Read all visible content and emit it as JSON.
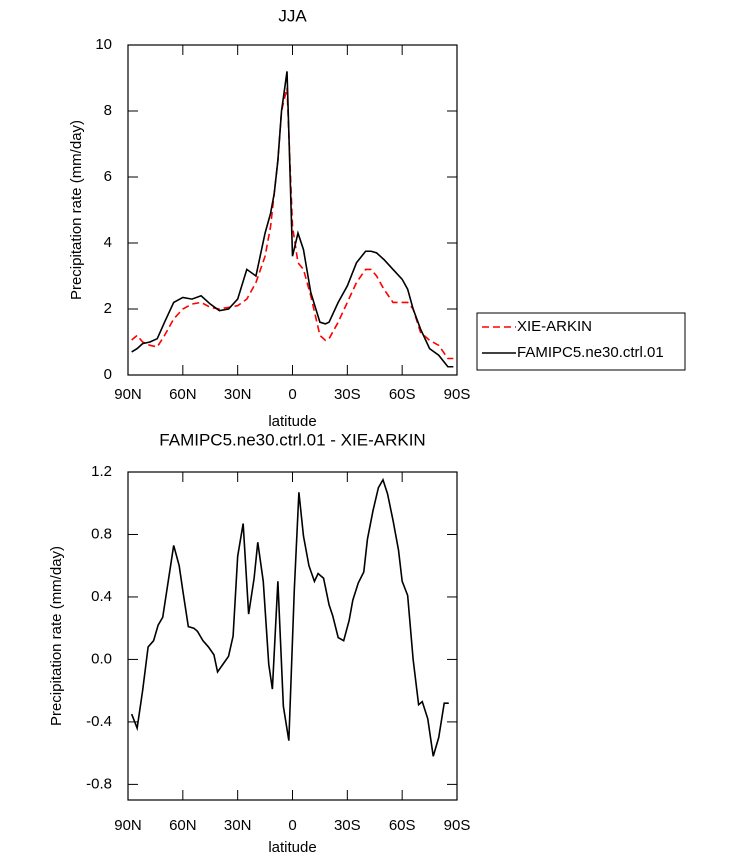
{
  "chart_data": [
    {
      "type": "line",
      "title": "JJA",
      "x_label": "latitude",
      "y_label": "Precipitation rate (mm/day)",
      "x": [
        88,
        85,
        82,
        78,
        74,
        70,
        65,
        60,
        55,
        50,
        45,
        40,
        35,
        30,
        25,
        20,
        15,
        12,
        10,
        8,
        6,
        3,
        0,
        -3,
        -6,
        -10,
        -15,
        -18,
        -20,
        -25,
        -30,
        -35,
        -40,
        -43,
        -46,
        -50,
        -55,
        -60,
        -63,
        -66,
        -70,
        -75,
        -80,
        -85,
        -88
      ],
      "series": [
        {
          "name": "XIE-ARKIN",
          "color": "#ff0000",
          "line_style": "dashed",
          "values": [
            1.06,
            1.2,
            1.0,
            0.9,
            0.85,
            1.2,
            1.7,
            2.0,
            2.15,
            2.2,
            2.05,
            2.0,
            2.05,
            2.1,
            2.3,
            2.8,
            3.6,
            4.5,
            5.5,
            6.5,
            8.0,
            8.7,
            4.5,
            3.4,
            3.2,
            2.4,
            1.2,
            1.05,
            1.1,
            1.6,
            2.2,
            2.8,
            3.2,
            3.2,
            3.0,
            2.6,
            2.2,
            2.2,
            2.2,
            2.0,
            1.3,
            1.05,
            0.9,
            0.5,
            0.5
          ]
        },
        {
          "name": "FAMIPC5.ne30.ctrl.01",
          "color": "#000000",
          "line_style": "solid",
          "values": [
            0.7,
            0.8,
            0.95,
            1.0,
            1.1,
            1.6,
            2.2,
            2.35,
            2.3,
            2.4,
            2.15,
            1.95,
            2.0,
            2.3,
            3.2,
            3.0,
            4.3,
            4.9,
            5.5,
            6.5,
            8.0,
            9.2,
            3.6,
            4.3,
            3.8,
            2.5,
            1.6,
            1.55,
            1.6,
            2.2,
            2.7,
            3.4,
            3.75,
            3.75,
            3.7,
            3.5,
            3.2,
            2.9,
            2.6,
            2.0,
            1.4,
            0.8,
            0.6,
            0.25,
            0.25
          ]
        }
      ],
      "xlim": [
        90,
        -90
      ],
      "xticks": [
        {
          "value": 90,
          "label": "90N"
        },
        {
          "value": 60,
          "label": "60N"
        },
        {
          "value": 30,
          "label": "30N"
        },
        0,
        {
          "value": -30,
          "label": "30S"
        },
        {
          "value": -60,
          "label": "60S"
        },
        {
          "value": -90,
          "label": "90S"
        }
      ],
      "ylim": [
        0,
        10
      ],
      "yticks": [
        0,
        2,
        4,
        6,
        8,
        10
      ],
      "legend": "right"
    },
    {
      "type": "line",
      "title": "FAMIPC5.ne30.ctrl.01 - XIE-ARKIN",
      "x_label": "latitude",
      "y_label": "Precipitation rate (mm/day)",
      "x": [
        88,
        85,
        82,
        79,
        76,
        73.5,
        71,
        68,
        65,
        62,
        60,
        57,
        54,
        52,
        49,
        46,
        43,
        41,
        38,
        35,
        32.5,
        30,
        27,
        24,
        21,
        19,
        16,
        13,
        11,
        8,
        5,
        2,
        -1,
        -3.5,
        -6,
        -9,
        -12,
        -14,
        -17,
        -20,
        -22,
        -25,
        -28,
        -31,
        -33,
        -36,
        -39,
        -41,
        -44,
        -47,
        -49.5,
        -52,
        -55,
        -58,
        -60,
        -63,
        -66,
        -69,
        -71,
        -74,
        -77,
        -80,
        -83,
        -85.5
      ],
      "series": [
        {
          "color": "#000000",
          "line_style": "solid",
          "values": [
            -0.35,
            -0.44,
            -0.2,
            0.08,
            0.12,
            0.22,
            0.27,
            0.5,
            0.73,
            0.6,
            0.44,
            0.21,
            0.2,
            0.18,
            0.12,
            0.08,
            0.03,
            -0.08,
            -0.03,
            0.02,
            0.15,
            0.66,
            0.87,
            0.29,
            0.52,
            0.75,
            0.5,
            -0.03,
            -0.19,
            0.5,
            -0.3,
            -0.52,
            0.45,
            1.07,
            0.79,
            0.6,
            0.5,
            0.55,
            0.52,
            0.35,
            0.28,
            0.14,
            0.12,
            0.25,
            0.38,
            0.49,
            0.56,
            0.77,
            0.95,
            1.1,
            1.15,
            1.06,
            0.89,
            0.7,
            0.5,
            0.41,
            0.0,
            -0.29,
            -0.27,
            -0.38,
            -0.62,
            -0.5,
            -0.28,
            -0.28
          ]
        }
      ],
      "xlim": [
        90,
        -90
      ],
      "xticks": [
        {
          "value": 90,
          "label": "90N"
        },
        {
          "value": 60,
          "label": "60N"
        },
        {
          "value": 30,
          "label": "30N"
        },
        0,
        {
          "value": -30,
          "label": "30S"
        },
        {
          "value": -60,
          "label": "60S"
        },
        {
          "value": -90,
          "label": "90S"
        }
      ],
      "ylim": [
        -0.9,
        1.2
      ],
      "yticks": [
        -0.8,
        -0.4,
        {
          "value": 0,
          "label": "0.0"
        },
        0.4,
        0.8,
        1.2
      ]
    }
  ]
}
